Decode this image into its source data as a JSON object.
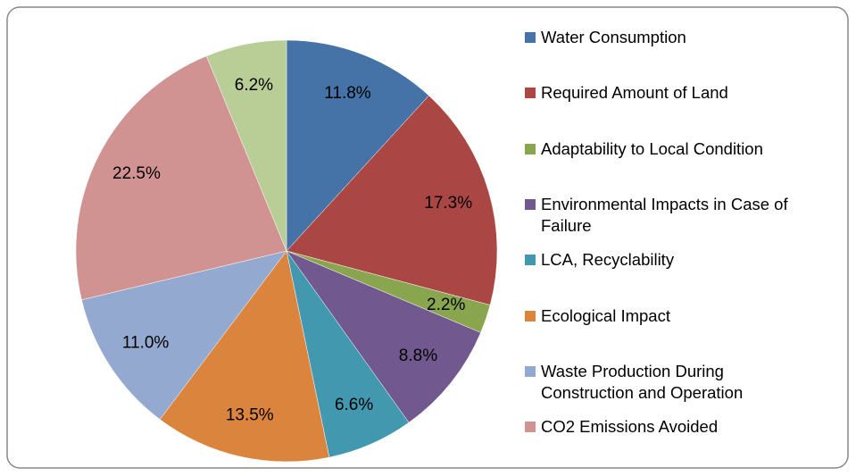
{
  "chart_data": {
    "type": "pie",
    "categories": [
      "Water Consumption",
      "Required Amount of Land",
      "Adaptability to Local Condition",
      "Environmental Impacts in Case of Failure",
      "LCA, Recyclability",
      "Ecological Impact",
      "Waste Production During Construction and Operation",
      "CO2 Emissions Avoided",
      null
    ],
    "values": [
      11.8,
      17.3,
      2.2,
      8.8,
      6.6,
      13.5,
      11.0,
      22.5,
      6.2
    ],
    "value_labels": [
      "11.8%",
      "17.3%",
      "2.2%",
      "8.8%",
      "6.6%",
      "13.5%",
      "11.0%",
      "22.5%",
      "6.2%"
    ],
    "colors": [
      "#4572a7",
      "#aa4643",
      "#89a54e",
      "#71588f",
      "#4198af",
      "#db843d",
      "#93a9cf",
      "#d19392",
      "#b9cd96"
    ],
    "legend": "right"
  }
}
